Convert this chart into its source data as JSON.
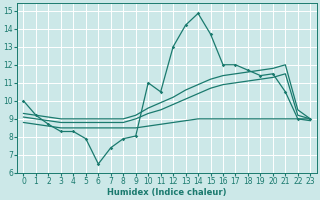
{
  "xlabel": "Humidex (Indice chaleur)",
  "bg_color": "#cce8e8",
  "grid_color": "#ffffff",
  "line_color": "#1a7a6e",
  "xlim": [
    -0.5,
    23.5
  ],
  "ylim": [
    6,
    15.4
  ],
  "xticks": [
    0,
    1,
    2,
    3,
    4,
    5,
    6,
    7,
    8,
    9,
    10,
    11,
    12,
    13,
    14,
    15,
    16,
    17,
    18,
    19,
    20,
    21,
    22,
    23
  ],
  "yticks": [
    6,
    7,
    8,
    9,
    10,
    11,
    12,
    13,
    14,
    15
  ],
  "spiky_x": [
    0,
    1,
    2,
    3,
    4,
    5,
    6,
    7,
    8,
    9,
    10,
    11,
    12,
    13,
    14,
    15,
    16,
    17,
    18,
    19,
    20,
    21,
    22,
    23
  ],
  "spiky_y": [
    10.0,
    9.2,
    8.7,
    8.3,
    8.3,
    7.9,
    6.5,
    7.4,
    7.9,
    8.05,
    11.0,
    10.5,
    13.0,
    14.2,
    14.85,
    13.7,
    12.0,
    12.0,
    11.7,
    11.4,
    11.5,
    10.5,
    9.0,
    9.0
  ],
  "smooth1_x": [
    0,
    1,
    2,
    3,
    4,
    5,
    6,
    7,
    8,
    9,
    10,
    11,
    12,
    13,
    14,
    15,
    16,
    17,
    18,
    19,
    20,
    21,
    22,
    23
  ],
  "smooth1_y": [
    8.8,
    8.7,
    8.6,
    8.5,
    8.5,
    8.5,
    8.5,
    8.5,
    8.5,
    8.5,
    8.6,
    8.7,
    8.8,
    8.9,
    9.0,
    9.0,
    9.0,
    9.0,
    9.0,
    9.0,
    9.0,
    9.0,
    9.0,
    8.9
  ],
  "smooth2_x": [
    0,
    1,
    2,
    3,
    4,
    5,
    6,
    7,
    8,
    9,
    10,
    11,
    12,
    13,
    14,
    15,
    16,
    17,
    18,
    19,
    20,
    21,
    22,
    23
  ],
  "smooth2_y": [
    9.1,
    9.0,
    8.9,
    8.8,
    8.8,
    8.8,
    8.8,
    8.8,
    8.8,
    9.0,
    9.3,
    9.5,
    9.8,
    10.1,
    10.4,
    10.7,
    10.9,
    11.0,
    11.1,
    11.2,
    11.3,
    11.5,
    9.2,
    9.0
  ],
  "smooth3_x": [
    0,
    1,
    2,
    3,
    4,
    5,
    6,
    7,
    8,
    9,
    10,
    11,
    12,
    13,
    14,
    15,
    16,
    17,
    18,
    19,
    20,
    21,
    22,
    23
  ],
  "smooth3_y": [
    9.3,
    9.2,
    9.1,
    9.0,
    9.0,
    9.0,
    9.0,
    9.0,
    9.0,
    9.2,
    9.6,
    9.9,
    10.2,
    10.6,
    10.9,
    11.2,
    11.4,
    11.5,
    11.6,
    11.7,
    11.8,
    12.0,
    9.5,
    9.0
  ]
}
